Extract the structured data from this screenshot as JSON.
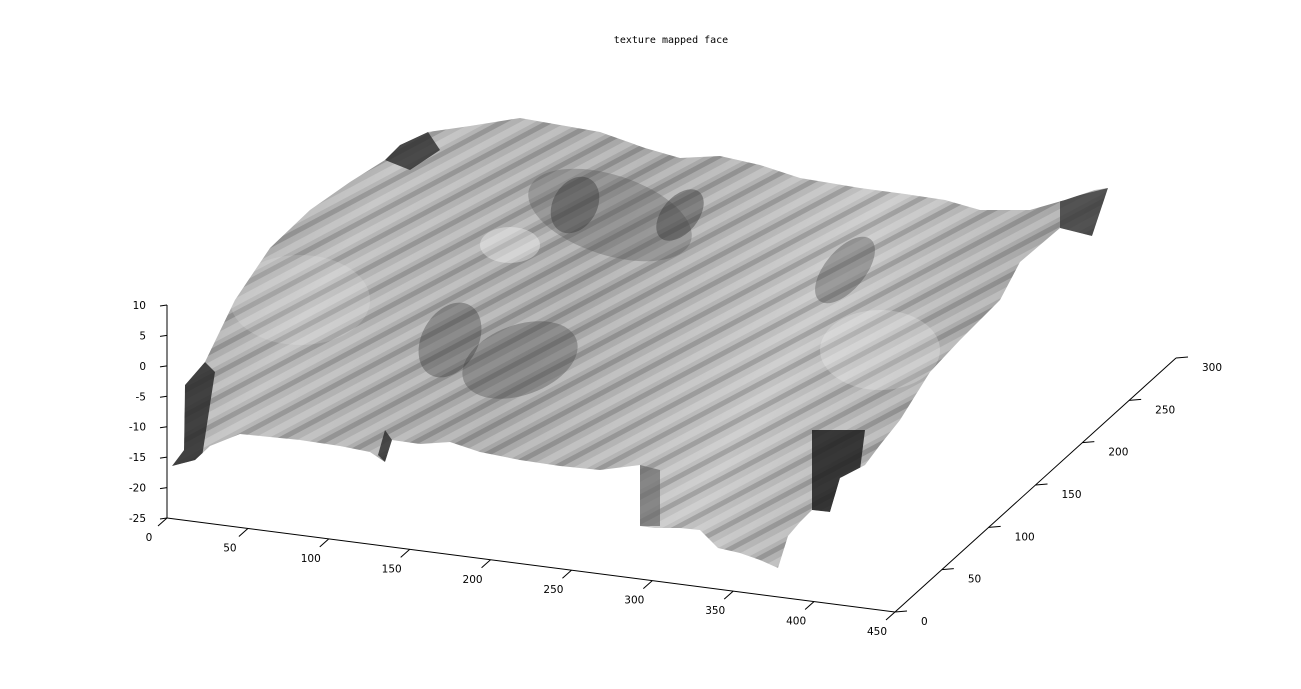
{
  "chart_data": {
    "type": "surface",
    "title": "texture mapped face",
    "x_axis": {
      "ticks": [
        0,
        50,
        100,
        150,
        200,
        250,
        300,
        350,
        400,
        450
      ],
      "range": [
        0,
        450
      ]
    },
    "y_axis": {
      "ticks": [
        0,
        50,
        100,
        150,
        200,
        250,
        300
      ],
      "range": [
        0,
        300
      ]
    },
    "z_axis": {
      "ticks": [
        10,
        5,
        0,
        -5,
        -10,
        -15,
        -20,
        -25
      ],
      "range": [
        -25,
        10
      ]
    },
    "colormap": "gray",
    "grid": false,
    "legend": "none"
  }
}
